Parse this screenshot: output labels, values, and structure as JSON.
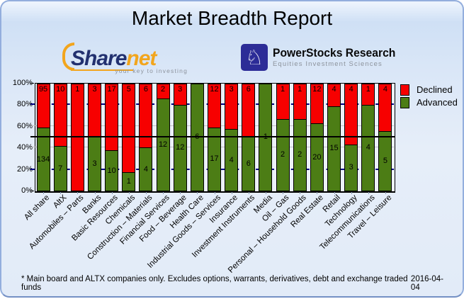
{
  "card": {
    "title": "Market Breadth Report",
    "footnote": "* Main board and ALTX companies only. Excludes options, warrants, derivatives, debt and exchange traded funds",
    "date": "2016-04-04"
  },
  "logos": {
    "sharenet": {
      "name_part1": "Share",
      "name_part2": "net",
      "tagline": "your key to investing"
    },
    "powerstocks": {
      "title": "PowerStocks Research",
      "tagline": "Equities Investment Sciences",
      "icon": "knight-chess-piece"
    }
  },
  "colors": {
    "declined": "#f70000",
    "advanced": "#4c7d15",
    "reference_line": "#000000",
    "grid_minor": "#c2c2c2",
    "grid_navy": "#000080",
    "plot_background": "#ecf1fa"
  },
  "chart_data": {
    "type": "bar",
    "stacked": true,
    "normalized_to_100pct": true,
    "title": "Market Breadth Report",
    "categories": [
      "All share",
      "AltX",
      "Automobiles – Parts",
      "Banks",
      "Basic Resources",
      "Chemicals",
      "Construction – Materials",
      "Financial Services",
      "Food – Beverage",
      "Health Care",
      "Industrial Goods – Services",
      "Insurance",
      "Investment Instruments",
      "Media",
      "Oil – Gas",
      "Personal – Household Goods",
      "Real Estate",
      "Retail",
      "Technology",
      "Telecommunications",
      "Travel – Leisure"
    ],
    "series": [
      {
        "name": "Declined",
        "color": "#f70000",
        "values": [
          95,
          10,
          1,
          3,
          17,
          5,
          6,
          2,
          3,
          0,
          12,
          3,
          6,
          0,
          1,
          1,
          12,
          4,
          4,
          1,
          4
        ]
      },
      {
        "name": "Advanced",
        "color": "#4c7d15",
        "values": [
          134,
          7,
          0,
          3,
          10,
          1,
          4,
          12,
          12,
          6,
          17,
          4,
          6,
          1,
          2,
          2,
          20,
          15,
          3,
          4,
          5
        ]
      }
    ],
    "y_ticks": [
      "0%",
      "20%",
      "40%",
      "60%",
      "80%",
      "100%"
    ],
    "ylim": [
      0,
      100
    ],
    "ylabel": "",
    "xlabel": "",
    "reference_line_pct": 50,
    "grid": true,
    "legend_position": "top-right"
  }
}
